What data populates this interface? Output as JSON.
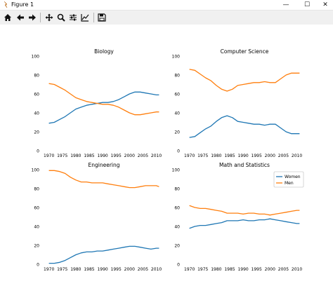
{
  "window": {
    "title": "Figure 1",
    "minimize": "—",
    "maximize": "☐",
    "close": "✕"
  },
  "toolbar": {
    "buttons": [
      {
        "name": "home-icon"
      },
      {
        "name": "back-arrow-icon"
      },
      {
        "name": "forward-arrow-icon"
      },
      {
        "name": "pan-icon"
      },
      {
        "name": "zoom-icon"
      },
      {
        "name": "subplots-icon"
      },
      {
        "name": "edit-axes-icon"
      },
      {
        "name": "save-icon"
      }
    ]
  },
  "colors": {
    "women": "#1f77b4",
    "men": "#ff7f0e"
  },
  "legend": {
    "location": "upper right",
    "entries": [
      "Women",
      "Men"
    ]
  },
  "chart_data": [
    {
      "type": "line",
      "title": "Biology",
      "x": [
        1970,
        1972,
        1974,
        1976,
        1978,
        1980,
        1982,
        1984,
        1986,
        1988,
        1990,
        1992,
        1994,
        1996,
        1998,
        2000,
        2002,
        2004,
        2006,
        2008,
        2010,
        2011
      ],
      "xticks": [
        1970,
        1975,
        1980,
        1985,
        1990,
        1995,
        2000,
        2005,
        2010
      ],
      "ylim": [
        0,
        100
      ],
      "yticks": [
        0,
        20,
        40,
        60,
        80,
        100
      ],
      "series": [
        {
          "name": "Women",
          "values": [
            29,
            30,
            33,
            36,
            40,
            44,
            46,
            48,
            49,
            50,
            51,
            51,
            52,
            54,
            57,
            60,
            62,
            62,
            61,
            60,
            59,
            59
          ]
        },
        {
          "name": "Men",
          "values": [
            71,
            70,
            67,
            64,
            60,
            56,
            54,
            52,
            51,
            50,
            49,
            49,
            48,
            46,
            43,
            40,
            38,
            38,
            39,
            40,
            41,
            41
          ]
        }
      ]
    },
    {
      "type": "line",
      "title": "Computer Science",
      "x": [
        1970,
        1972,
        1974,
        1976,
        1978,
        1980,
        1982,
        1984,
        1986,
        1988,
        1990,
        1992,
        1994,
        1996,
        1998,
        2000,
        2002,
        2004,
        2006,
        2008,
        2010,
        2011
      ],
      "xticks": [
        1970,
        1975,
        1980,
        1985,
        1990,
        1995,
        2000,
        2005,
        2010
      ],
      "ylim": [
        0,
        100
      ],
      "yticks": [
        0,
        20,
        40,
        60,
        80,
        100
      ],
      "series": [
        {
          "name": "Women",
          "values": [
            14,
            15,
            19,
            23,
            26,
            31,
            35,
            37,
            35,
            31,
            30,
            29,
            28,
            28,
            27,
            28,
            28,
            24,
            20,
            18,
            18,
            18
          ]
        },
        {
          "name": "Men",
          "values": [
            86,
            85,
            81,
            77,
            74,
            69,
            65,
            63,
            65,
            69,
            70,
            71,
            72,
            72,
            73,
            72,
            72,
            76,
            80,
            82,
            82,
            82
          ]
        }
      ]
    },
    {
      "type": "line",
      "title": "Engineering",
      "x": [
        1970,
        1972,
        1974,
        1976,
        1978,
        1980,
        1982,
        1984,
        1986,
        1988,
        1990,
        1992,
        1994,
        1996,
        1998,
        2000,
        2002,
        2004,
        2006,
        2008,
        2010,
        2011
      ],
      "xticks": [
        1970,
        1975,
        1980,
        1985,
        1990,
        1995,
        2000,
        2005,
        2010
      ],
      "ylim": [
        0,
        100
      ],
      "yticks": [
        0,
        20,
        40,
        60,
        80,
        100
      ],
      "series": [
        {
          "name": "Women",
          "values": [
            1,
            1,
            2,
            4,
            7,
            10,
            12,
            13,
            13,
            14,
            14,
            15,
            16,
            17,
            18,
            19,
            19,
            18,
            17,
            16,
            17,
            17
          ]
        },
        {
          "name": "Men",
          "values": [
            99,
            99,
            98,
            96,
            92,
            89,
            87,
            87,
            86,
            86,
            86,
            85,
            84,
            83,
            82,
            81,
            81,
            82,
            83,
            83,
            83,
            82
          ]
        }
      ]
    },
    {
      "type": "line",
      "title": "Math and Statistics",
      "x": [
        1970,
        1972,
        1974,
        1976,
        1978,
        1980,
        1982,
        1984,
        1986,
        1988,
        1990,
        1992,
        1994,
        1996,
        1998,
        2000,
        2002,
        2004,
        2006,
        2008,
        2010,
        2011
      ],
      "xticks": [
        1970,
        1975,
        1980,
        1985,
        1990,
        1995,
        2000,
        2005,
        2010
      ],
      "ylim": [
        0,
        100
      ],
      "yticks": [
        0,
        20,
        40,
        60,
        80,
        100
      ],
      "series": [
        {
          "name": "Women",
          "values": [
            38,
            40,
            41,
            41,
            42,
            43,
            44,
            46,
            46,
            46,
            47,
            46,
            46,
            47,
            47,
            48,
            47,
            46,
            45,
            44,
            43,
            43
          ]
        },
        {
          "name": "Men",
          "values": [
            62,
            60,
            59,
            59,
            58,
            57,
            56,
            54,
            54,
            54,
            53,
            54,
            54,
            53,
            53,
            52,
            53,
            54,
            55,
            56,
            57,
            57
          ]
        }
      ]
    }
  ]
}
